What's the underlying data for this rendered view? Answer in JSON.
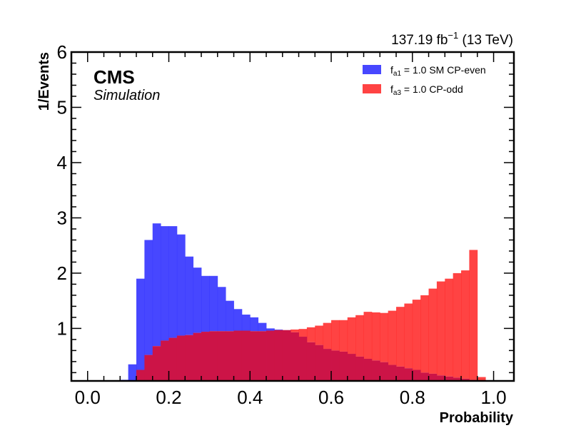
{
  "colors": {
    "sm": "#3333ff",
    "odd": "#ff2222",
    "overlap": "#cc1447",
    "axis": "#000000"
  },
  "labels": {
    "cms": "CMS",
    "simulation": "Simulation",
    "lumi_prefix": "137.19 fb",
    "lumi_exp": "−1",
    "lumi_suffix": " (13 TeV)"
  },
  "legend": {
    "sm": {
      "f": "f",
      "sub": "a1",
      "rest": " = 1.0 SM CP-even"
    },
    "odd": {
      "f": "f",
      "sub": "a3",
      "rest": " = 1.0 CP-odd"
    }
  },
  "chart_data": {
    "type": "histogram",
    "xlabel": "Probability",
    "ylabel": "1/Events",
    "xlim": [
      -0.04,
      1.05
    ],
    "ylim": [
      0.05,
      6
    ],
    "xticks": [
      {
        "value": 0.0,
        "label": "0.0"
      },
      {
        "value": 0.2,
        "label": "0.2"
      },
      {
        "value": 0.4,
        "label": "0.4"
      },
      {
        "value": 0.6,
        "label": "0.6"
      },
      {
        "value": 0.8,
        "label": "0.8"
      },
      {
        "value": 1.0,
        "label": "1.0"
      }
    ],
    "yticks": [
      {
        "value": 1,
        "label": "1"
      },
      {
        "value": 2,
        "label": "2"
      },
      {
        "value": 3,
        "label": "3"
      },
      {
        "value": 4,
        "label": "4"
      },
      {
        "value": 5,
        "label": "5"
      },
      {
        "value": 6,
        "label": "6"
      }
    ],
    "bin_start": 0.0,
    "bin_width": 0.02,
    "series": [
      {
        "name": "SM CP-even",
        "values": [
          0,
          0,
          0,
          0,
          0.07,
          0.35,
          1.9,
          2.6,
          2.9,
          2.85,
          2.85,
          2.7,
          2.3,
          2.1,
          1.95,
          1.95,
          1.75,
          1.5,
          1.35,
          1.25,
          1.2,
          1.1,
          1.0,
          0.98,
          0.97,
          0.93,
          0.85,
          0.75,
          0.7,
          0.63,
          0.6,
          0.58,
          0.54,
          0.49,
          0.45,
          0.42,
          0.39,
          0.34,
          0.31,
          0.28,
          0.25,
          0.2,
          0.18,
          0.15,
          0.13,
          0.11,
          0.09,
          0.07,
          0.05,
          0.02,
          0,
          0,
          0,
          0,
          0
        ]
      },
      {
        "name": "CP-odd",
        "values": [
          0,
          0,
          0,
          0,
          0,
          0.02,
          0.25,
          0.52,
          0.68,
          0.78,
          0.83,
          0.87,
          0.88,
          0.92,
          0.94,
          0.95,
          0.95,
          0.95,
          0.96,
          0.96,
          0.95,
          0.95,
          0.96,
          0.97,
          0.97,
          0.98,
          0.99,
          1.02,
          1.05,
          1.1,
          1.15,
          1.15,
          1.2,
          1.24,
          1.3,
          1.29,
          1.28,
          1.32,
          1.39,
          1.45,
          1.52,
          1.6,
          1.72,
          1.85,
          1.9,
          2.0,
          2.05,
          2.42,
          0.12,
          0,
          0,
          0,
          0,
          0,
          0
        ]
      }
    ]
  }
}
